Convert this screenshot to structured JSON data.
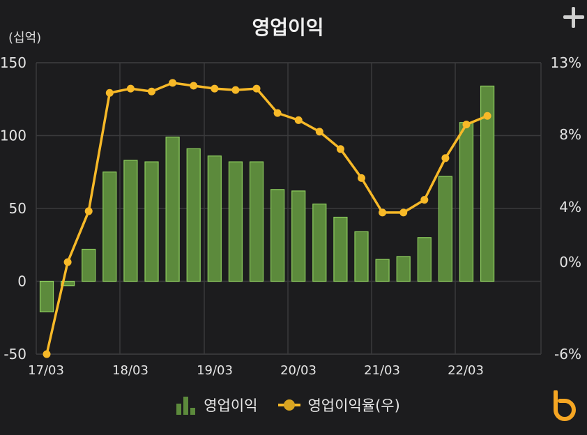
{
  "title": "영업이익",
  "left_unit": "(십억)",
  "legend": {
    "bar_label": "영업이익",
    "line_label": "영업이익율(우)"
  },
  "colors": {
    "bar_fill": "#5c8a3c",
    "bar_stroke": "#8fcf5f",
    "line": "#f7b928",
    "grid": "#3a3a3c",
    "logo": "#f5a623"
  },
  "icons": {
    "top_right": "plus-icon",
    "bottom_right": "brand-logo-icon"
  },
  "chart_data": {
    "type": "bar",
    "x_ticks": [
      "17/03",
      "18/03",
      "19/03",
      "20/03",
      "21/03",
      "22/03"
    ],
    "left_axis": {
      "ticks": [
        -50,
        0,
        50,
        100,
        150
      ],
      "range": [
        -50,
        150
      ]
    },
    "right_axis": {
      "ticks": [
        "-6%",
        "0%",
        "4%",
        "8%",
        "13%"
      ]
    },
    "series": [
      {
        "name": "영업이익",
        "type": "bar",
        "values": [
          -21,
          -3,
          22,
          75,
          83,
          82,
          99,
          91,
          86,
          82,
          82,
          63,
          62,
          53,
          44,
          34,
          15,
          17,
          30,
          72,
          109,
          134
        ]
      },
      {
        "name": "영업이익율(우)",
        "type": "line",
        "values": [
          -6,
          0,
          3.7,
          10.9,
          11.2,
          11.0,
          11.6,
          11.4,
          11.2,
          11.1,
          11.2,
          9.5,
          9.0,
          8.2,
          7.2,
          5.6,
          3.6,
          3.6,
          4.4,
          6.7,
          8.7,
          9.3
        ]
      }
    ]
  }
}
